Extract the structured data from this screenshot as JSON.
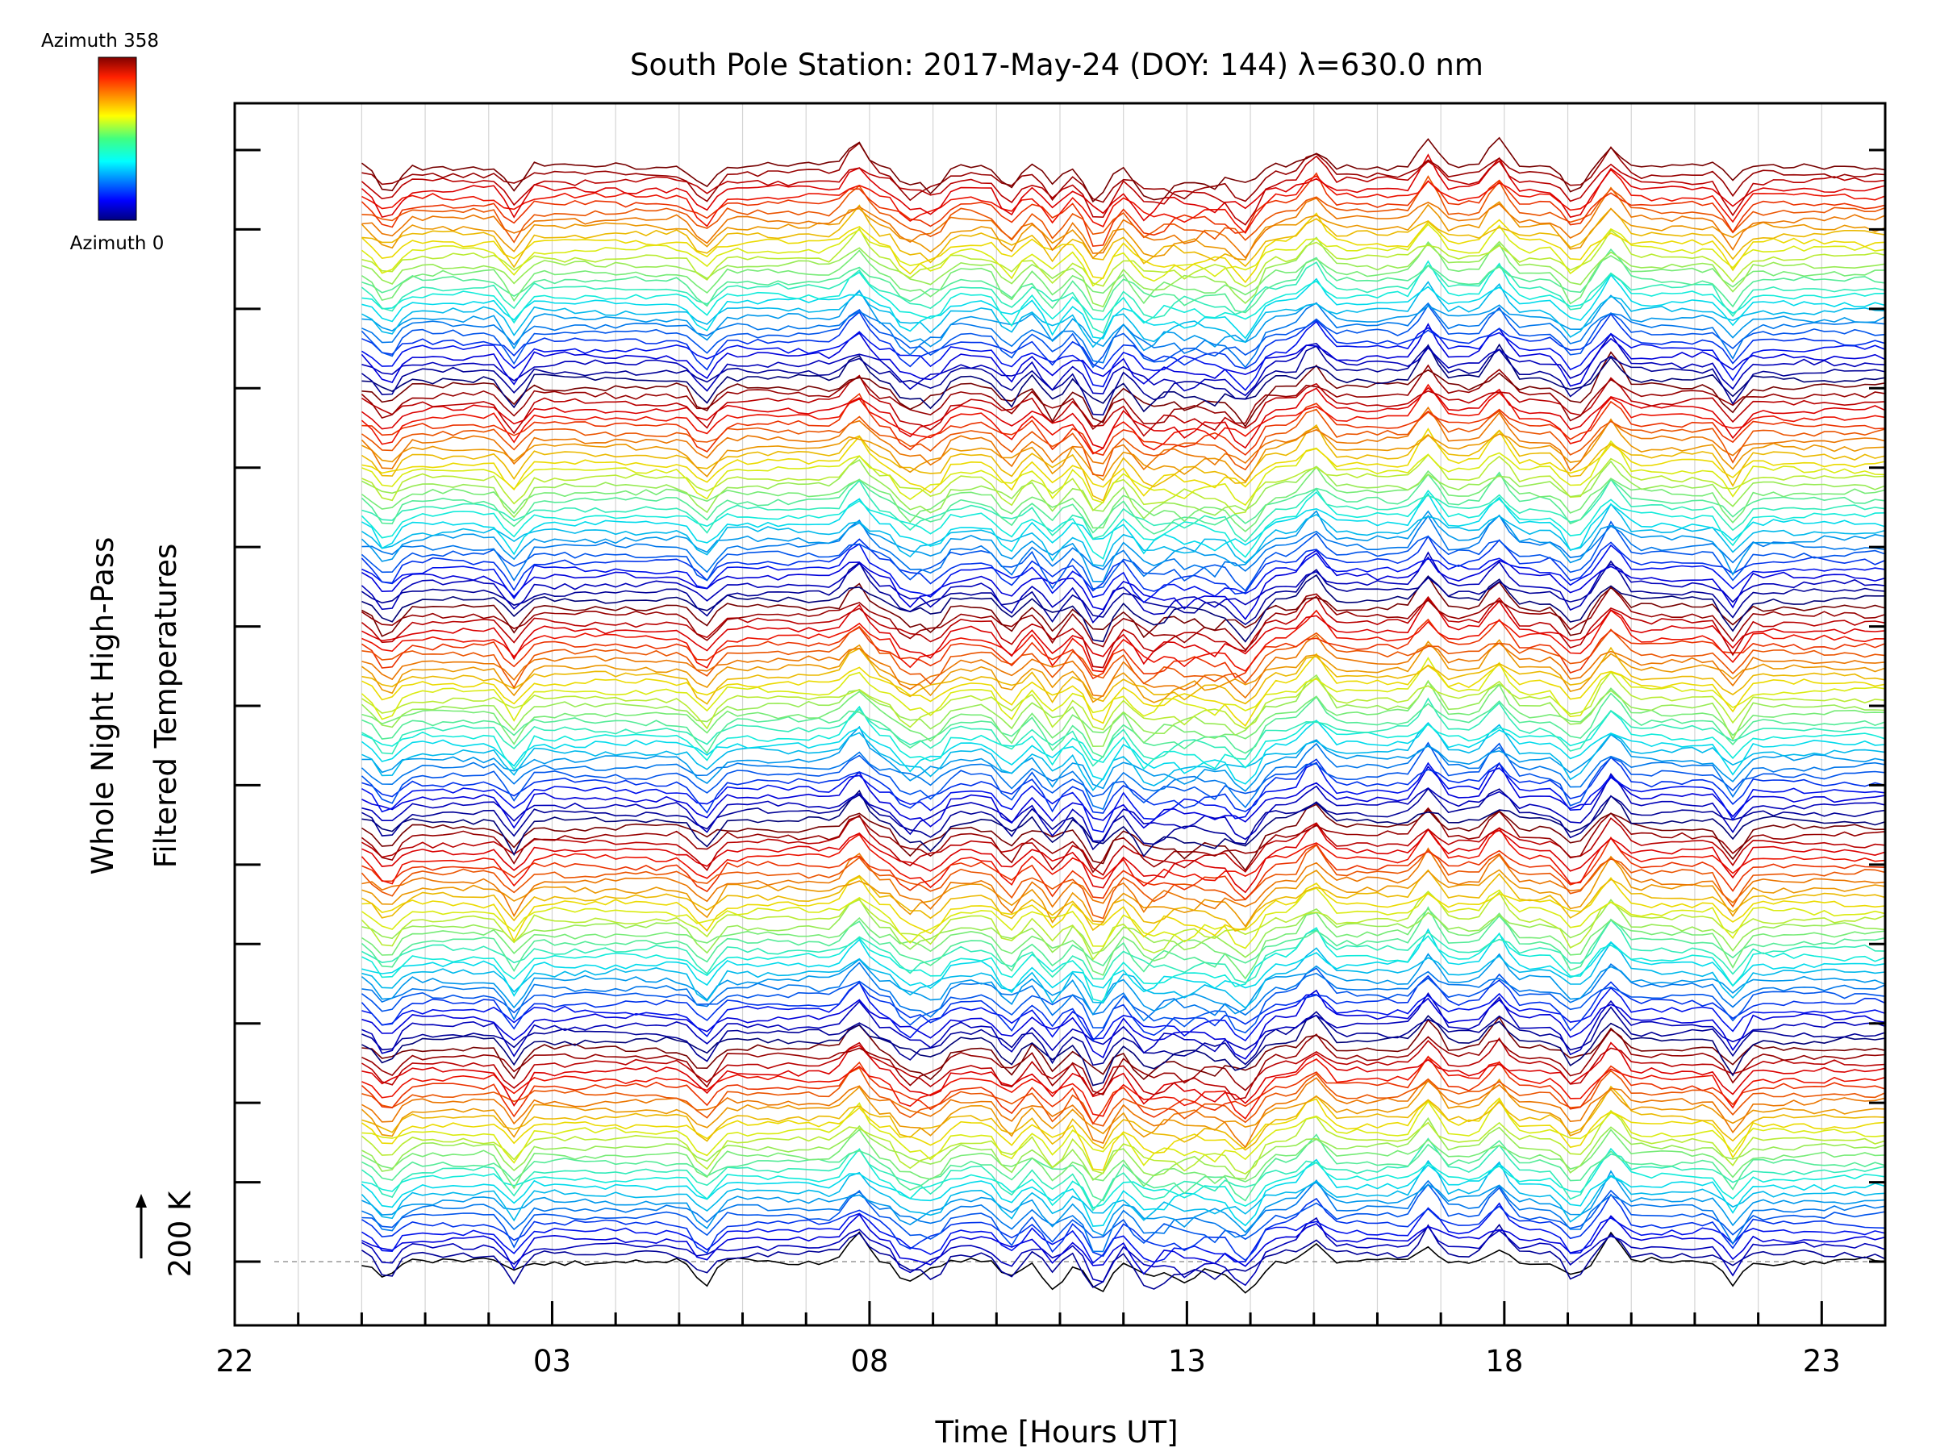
{
  "chart_data": {
    "type": "line",
    "title": "South Pole Station: 2017-May-24 (DOY: 144) λ=630.0 nm",
    "xlabel": "Time [Hours UT]",
    "ylabel_line1": "Whole Night High-Pass",
    "ylabel_line2": "Filtered Temperatures",
    "scale_label": "200 K",
    "x_tick_labels": [
      "22",
      "03",
      "08",
      "13",
      "18",
      "23"
    ],
    "x_tick_hours": [
      22,
      27,
      32,
      37,
      42,
      47
    ],
    "xlim": [
      22,
      48
    ],
    "data_x_range": [
      24,
      48
    ],
    "colorbar": {
      "top_label": "Azimuth 358",
      "bottom_label": "Azimuth 0",
      "min": 0,
      "max": 358
    },
    "series_count": 145,
    "y_ticks": 15,
    "major_excursions": [
      {
        "hour": 24.4,
        "sign": -1
      },
      {
        "hour": 26.4,
        "sign": -1
      },
      {
        "hour": 29.4,
        "sign": -1
      },
      {
        "hour": 31.8,
        "sign": 1
      },
      {
        "hour": 32.6,
        "sign": -1
      },
      {
        "hour": 33.0,
        "sign": -1
      },
      {
        "hour": 34.2,
        "sign": -1
      },
      {
        "hour": 34.9,
        "sign": -1
      },
      {
        "hour": 35.5,
        "sign": -1
      },
      {
        "hour": 35.7,
        "sign": -1
      },
      {
        "hour": 36.3,
        "sign": -1
      },
      {
        "hour": 36.6,
        "sign": -1
      },
      {
        "hour": 37.0,
        "sign": -1
      },
      {
        "hour": 37.4,
        "sign": -1
      },
      {
        "hour": 37.8,
        "sign": -1
      },
      {
        "hour": 38.0,
        "sign": -1
      },
      {
        "hour": 39.0,
        "sign": 1
      },
      {
        "hour": 40.8,
        "sign": 1
      },
      {
        "hour": 41.9,
        "sign": 1
      },
      {
        "hour": 43.1,
        "sign": -1
      },
      {
        "hour": 43.7,
        "sign": 1
      },
      {
        "hour": 45.6,
        "sign": -1
      }
    ]
  }
}
